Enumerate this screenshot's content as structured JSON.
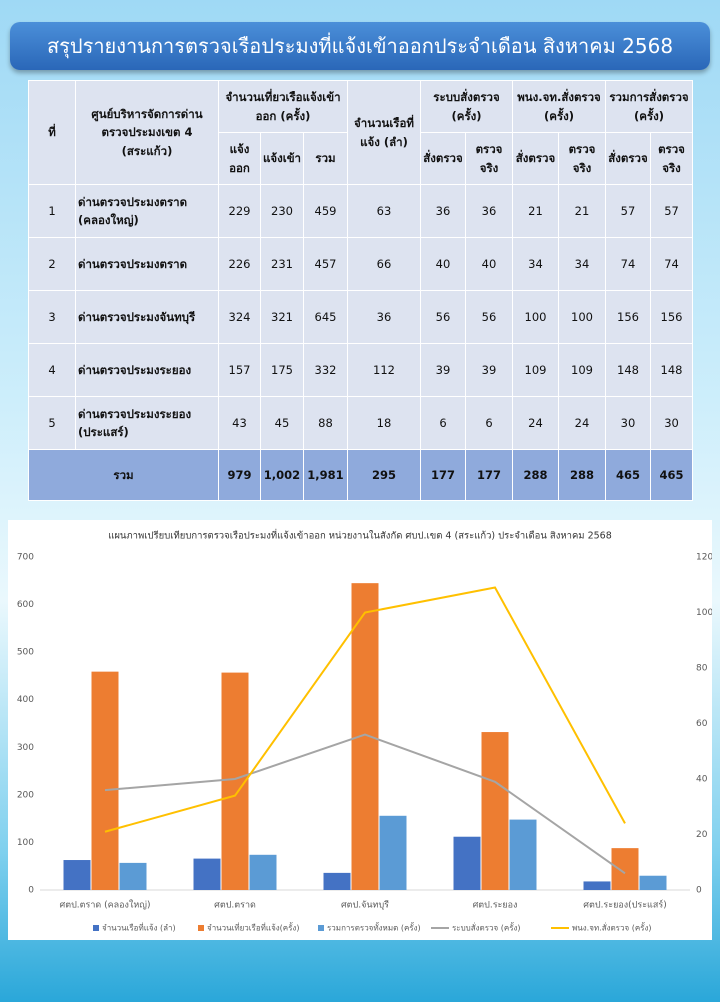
{
  "header": {
    "title": "สรุปรายงานการตรวจเรือประมงที่แจ้งเข้าออกประจำเดือน สิงหาคม 2568"
  },
  "table": {
    "header_rows": [
      [
        "ที่",
        "ศูนย์บริหารจัดการด่านตรวจประมงเขต 4 (สระแก้ว)",
        "จำนวนเที่ยวเรือแจ้งเข้าออก (ครั้ง)",
        "จำนวนเรือที่แจ้ง (ลำ)",
        "ระบบสั่งตรวจ (ครั้ง)",
        "พนง.จท.สั่งตรวจ (ครั้ง)",
        "รวมการสั่งตรวจ (ครั้ง)"
      ],
      [
        "แจ้งออก",
        "แจ้งเข้า",
        "รวม",
        "สั่งตรวจ",
        "ตรวจจริง",
        "สั่งตรวจ",
        "ตรวจจริง",
        "สั่งตรวจ",
        "ตรวจจริง"
      ]
    ],
    "rows": [
      [
        1,
        "ด่านตรวจประมงตราด (คลองใหญ่)",
        229,
        230,
        459,
        63,
        36,
        36,
        21,
        21,
        57,
        57
      ],
      [
        2,
        "ด่านตรวจประมงตราด",
        226,
        231,
        457,
        66,
        40,
        40,
        34,
        34,
        74,
        74
      ],
      [
        3,
        "ด่านตรวจประมงจันทบุรี",
        324,
        321,
        645,
        36,
        56,
        56,
        100,
        100,
        156,
        156
      ],
      [
        4,
        "ด่านตรวจประมงระยอง",
        157,
        175,
        332,
        112,
        39,
        39,
        109,
        109,
        148,
        148
      ],
      [
        5,
        "ด่านตรวจประมงระยอง (ประแสร์)",
        43,
        45,
        88,
        18,
        6,
        6,
        24,
        24,
        30,
        30
      ]
    ],
    "total": [
      "รวม",
      979,
      "1,002",
      "1,981",
      295,
      177,
      177,
      288,
      288,
      465,
      465
    ]
  },
  "chart_data": {
    "type": "bar-line",
    "title": "แผนภาพเปรียบเทียบการตรวจเรือประมงที่แจ้งเข้าออก หน่วยงานในสังกัด ศบป.เขต 4 (สระแก้ว) ประจำเดือน สิงหาคม 2568",
    "categories": [
      "ศตป.ตราด (คลองใหญ่)",
      "ศตป.ตราด",
      "ศตป.จันทบุรี",
      "ศตป.ระยอง",
      "ศตป.ระยอง(ประแสร์)"
    ],
    "series": [
      {
        "name": "จำนวนเรือที่แจ้ง (ลำ)",
        "color": "#4472c4",
        "type": "bar",
        "values": [
          63,
          66,
          36,
          112,
          18
        ]
      },
      {
        "name": "จำนวนเที่ยวเรือที่แจ้ง(ครั้ง)",
        "color": "#ed7d31",
        "type": "bar",
        "values": [
          459,
          457,
          645,
          332,
          88
        ]
      },
      {
        "name": "รวมการตรวจทั้งหมด (ครั้ง)",
        "color": "#5b9bd5",
        "type": "bar",
        "values": [
          57,
          74,
          156,
          148,
          30
        ]
      },
      {
        "name": "ระบบสั่งตรวจ (ครั้ง)",
        "color": "#a5a5a5",
        "type": "line",
        "axis": "y2",
        "values": [
          36,
          40,
          56,
          39,
          6
        ]
      },
      {
        "name": "พนง.จท.สั่งตรวจ (ครั้ง)",
        "color": "#ffc000",
        "type": "line",
        "axis": "y2",
        "values": [
          21,
          34,
          100,
          109,
          24
        ]
      }
    ],
    "ylim": [
      0,
      700
    ],
    "yticks": [
      0,
      100,
      200,
      300,
      400,
      500,
      600,
      700
    ],
    "y2lim": [
      0,
      120
    ],
    "y2ticks": [
      0,
      20,
      40,
      60,
      80,
      100,
      120
    ],
    "legend": "bottom"
  }
}
